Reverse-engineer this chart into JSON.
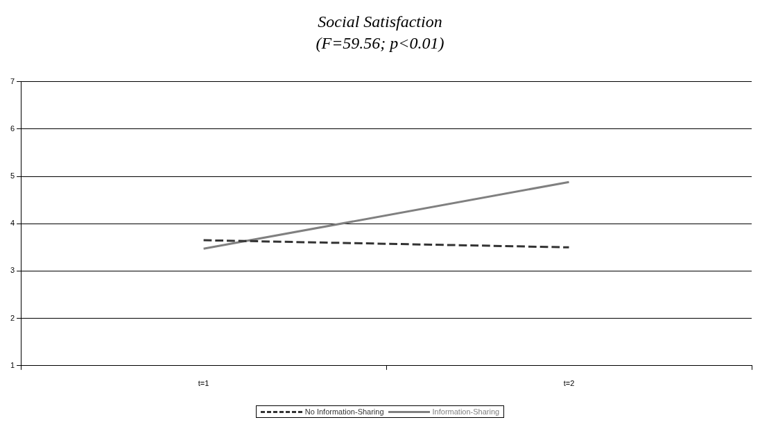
{
  "chart_data": {
    "type": "line",
    "title": "Social Satisfaction",
    "subtitle": "(F=59.56; p<0.01)",
    "categories": [
      "t=1",
      "t=2"
    ],
    "series": [
      {
        "name": "No Information-Sharing",
        "color": "#333333",
        "values": [
          3.65,
          3.5
        ],
        "line_style": "dashed"
      },
      {
        "name": "Information-Sharing",
        "color": "#808080",
        "values": [
          3.47,
          4.88
        ],
        "line_style": "solid"
      }
    ],
    "ylim": [
      1,
      7
    ],
    "yticks": [
      1,
      2,
      3,
      4,
      5,
      6,
      7
    ],
    "grid": "y",
    "legend": "bottom",
    "marker": "none"
  }
}
